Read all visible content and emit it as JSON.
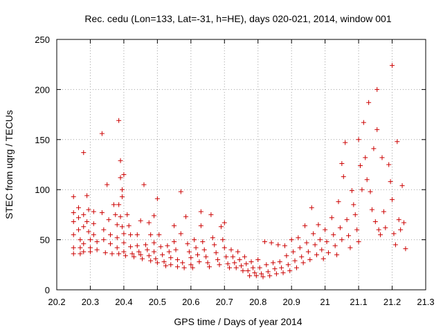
{
  "chart_data": {
    "type": "scatter",
    "title": "Rec. cedu (Lon=133, Lat=-31, h=HE), days 020-021, 2014, window 001",
    "xlabel": "GPS time / Days of year 2014",
    "ylabel": "STEC from uqrg / TECUs",
    "xlim": [
      20.2,
      21.3
    ],
    "ylim": [
      0,
      250
    ],
    "xticks": [
      20.2,
      20.3,
      20.4,
      20.5,
      20.6,
      20.7,
      20.8,
      20.9,
      21.0,
      21.1,
      21.2,
      21.3
    ],
    "xtick_labels": [
      "20.2",
      "20.3",
      "20.4",
      "20.5",
      "20.6",
      "20.7",
      "20.8",
      "20.9",
      "21",
      "21.1",
      "21.2",
      "21.3"
    ],
    "yticks": [
      0,
      50,
      100,
      150,
      200,
      250
    ],
    "ytick_labels": [
      "0",
      "50",
      "100",
      "150",
      "200",
      "250"
    ],
    "grid": true,
    "marker": "+",
    "color": "#cc0000",
    "series": [
      {
        "name": "STEC",
        "points": [
          [
            20.25,
            93
          ],
          [
            20.25,
            77
          ],
          [
            20.25,
            68
          ],
          [
            20.25,
            55
          ],
          [
            20.25,
            42
          ],
          [
            20.25,
            36
          ],
          [
            20.265,
            82
          ],
          [
            20.265,
            72
          ],
          [
            20.265,
            60
          ],
          [
            20.27,
            50
          ],
          [
            20.27,
            42
          ],
          [
            20.27,
            36
          ],
          [
            20.28,
            137
          ],
          [
            20.28,
            75
          ],
          [
            20.28,
            63
          ],
          [
            20.28,
            46
          ],
          [
            20.28,
            38
          ],
          [
            20.29,
            94
          ],
          [
            20.29,
            68
          ],
          [
            20.295,
            80
          ],
          [
            20.295,
            58
          ],
          [
            20.3,
            50
          ],
          [
            20.3,
            42
          ],
          [
            20.3,
            38
          ],
          [
            20.31,
            78
          ],
          [
            20.31,
            66
          ],
          [
            20.31,
            55
          ],
          [
            20.32,
            48
          ],
          [
            20.32,
            40
          ],
          [
            20.335,
            156
          ],
          [
            20.335,
            77
          ],
          [
            20.34,
            60
          ],
          [
            20.34,
            50
          ],
          [
            20.345,
            37
          ],
          [
            20.35,
            105
          ],
          [
            20.355,
            70
          ],
          [
            20.36,
            55
          ],
          [
            20.36,
            46
          ],
          [
            20.365,
            36
          ],
          [
            20.37,
            85
          ],
          [
            20.375,
            75
          ],
          [
            20.38,
            65
          ],
          [
            20.38,
            52
          ],
          [
            20.38,
            42
          ],
          [
            20.385,
            36
          ],
          [
            20.385,
            169
          ],
          [
            20.39,
            129
          ],
          [
            20.39,
            112
          ],
          [
            20.395,
            100
          ],
          [
            20.395,
            93
          ],
          [
            20.385,
            85
          ],
          [
            20.39,
            73
          ],
          [
            20.395,
            63
          ],
          [
            20.4,
            115
          ],
          [
            20.4,
            56
          ],
          [
            20.4,
            47
          ],
          [
            20.4,
            38
          ],
          [
            20.405,
            34
          ],
          [
            20.41,
            75
          ],
          [
            20.415,
            64
          ],
          [
            20.42,
            55
          ],
          [
            20.42,
            43
          ],
          [
            20.425,
            36
          ],
          [
            20.43,
            33
          ],
          [
            20.44,
            55
          ],
          [
            20.44,
            44
          ],
          [
            20.445,
            38
          ],
          [
            20.45,
            69
          ],
          [
            20.45,
            35
          ],
          [
            20.455,
            31
          ],
          [
            20.46,
            105
          ],
          [
            20.465,
            45
          ],
          [
            20.47,
            40
          ],
          [
            20.475,
            67
          ],
          [
            20.475,
            34
          ],
          [
            20.48,
            55
          ],
          [
            20.48,
            29
          ],
          [
            20.49,
            74
          ],
          [
            20.49,
            47
          ],
          [
            20.49,
            38
          ],
          [
            20.495,
            31
          ],
          [
            20.5,
            91
          ],
          [
            20.5,
            27
          ],
          [
            20.505,
            55
          ],
          [
            20.51,
            43
          ],
          [
            20.515,
            35
          ],
          [
            20.52,
            28
          ],
          [
            20.525,
            24
          ],
          [
            20.53,
            44
          ],
          [
            20.535,
            38
          ],
          [
            20.54,
            32
          ],
          [
            20.54,
            25
          ],
          [
            20.55,
            64
          ],
          [
            20.55,
            48
          ],
          [
            20.555,
            40
          ],
          [
            20.56,
            30
          ],
          [
            20.56,
            23
          ],
          [
            20.57,
            98
          ],
          [
            20.57,
            56
          ],
          [
            20.575,
            27
          ],
          [
            20.58,
            22
          ],
          [
            20.585,
            73
          ],
          [
            20.59,
            46
          ],
          [
            20.595,
            38
          ],
          [
            20.6,
            32
          ],
          [
            20.6,
            25
          ],
          [
            20.605,
            22
          ],
          [
            20.61,
            50
          ],
          [
            20.615,
            42
          ],
          [
            20.62,
            35
          ],
          [
            20.625,
            28
          ],
          [
            20.63,
            78
          ],
          [
            20.63,
            64
          ],
          [
            20.635,
            48
          ],
          [
            20.64,
            40
          ],
          [
            20.645,
            33
          ],
          [
            20.65,
            27
          ],
          [
            20.655,
            23
          ],
          [
            20.66,
            75
          ],
          [
            20.665,
            52
          ],
          [
            20.67,
            45
          ],
          [
            20.675,
            37
          ],
          [
            20.68,
            30
          ],
          [
            20.685,
            25
          ],
          [
            20.69,
            63
          ],
          [
            20.695,
            50
          ],
          [
            20.7,
            67
          ],
          [
            20.7,
            42
          ],
          [
            20.705,
            33
          ],
          [
            20.71,
            26
          ],
          [
            20.715,
            22
          ],
          [
            20.72,
            40
          ],
          [
            20.725,
            33
          ],
          [
            20.73,
            27
          ],
          [
            20.735,
            22
          ],
          [
            20.74,
            38
          ],
          [
            20.745,
            30
          ],
          [
            20.75,
            24
          ],
          [
            20.755,
            19
          ],
          [
            20.76,
            33
          ],
          [
            20.765,
            26
          ],
          [
            20.77,
            19
          ],
          [
            20.775,
            14
          ],
          [
            20.78,
            28
          ],
          [
            20.785,
            22
          ],
          [
            20.79,
            17
          ],
          [
            20.795,
            14
          ],
          [
            20.8,
            30
          ],
          [
            20.805,
            22
          ],
          [
            20.81,
            16
          ],
          [
            20.815,
            13
          ],
          [
            20.82,
            48
          ],
          [
            20.825,
            25
          ],
          [
            20.83,
            18
          ],
          [
            20.835,
            14
          ],
          [
            20.84,
            47
          ],
          [
            20.845,
            27
          ],
          [
            20.85,
            21
          ],
          [
            20.855,
            16
          ],
          [
            20.86,
            45
          ],
          [
            20.865,
            28
          ],
          [
            20.87,
            22
          ],
          [
            20.875,
            17
          ],
          [
            20.88,
            44
          ],
          [
            20.885,
            34
          ],
          [
            20.89,
            25
          ],
          [
            20.895,
            19
          ],
          [
            20.9,
            50
          ],
          [
            20.905,
            38
          ],
          [
            20.91,
            29
          ],
          [
            20.915,
            22
          ],
          [
            20.92,
            52
          ],
          [
            20.925,
            42
          ],
          [
            20.93,
            33
          ],
          [
            20.935,
            27
          ],
          [
            20.94,
            64
          ],
          [
            20.945,
            47
          ],
          [
            20.95,
            38
          ],
          [
            20.955,
            30
          ],
          [
            20.96,
            82
          ],
          [
            20.965,
            56
          ],
          [
            20.97,
            45
          ],
          [
            20.975,
            35
          ],
          [
            20.98,
            65
          ],
          [
            20.985,
            50
          ],
          [
            20.99,
            40
          ],
          [
            20.995,
            31
          ],
          [
            21.0,
            60
          ],
          [
            21.005,
            48
          ],
          [
            21.01,
            37
          ],
          [
            21.02,
            72
          ],
          [
            21.025,
            55
          ],
          [
            21.03,
            44
          ],
          [
            21.035,
            35
          ],
          [
            21.04,
            88
          ],
          [
            21.045,
            62
          ],
          [
            21.05,
            126
          ],
          [
            21.05,
            50
          ],
          [
            21.055,
            113
          ],
          [
            21.06,
            147
          ],
          [
            21.065,
            70
          ],
          [
            21.07,
            54
          ],
          [
            21.075,
            42
          ],
          [
            21.08,
            99
          ],
          [
            21.085,
            85
          ],
          [
            21.09,
            75
          ],
          [
            21.095,
            60
          ],
          [
            21.1,
            150
          ],
          [
            21.1,
            48
          ],
          [
            21.105,
            124
          ],
          [
            21.11,
            100
          ],
          [
            21.115,
            167
          ],
          [
            21.12,
            132
          ],
          [
            21.125,
            110
          ],
          [
            21.13,
            187
          ],
          [
            21.135,
            98
          ],
          [
            21.14,
            80
          ],
          [
            21.145,
            141
          ],
          [
            21.15,
            68
          ],
          [
            21.155,
            200
          ],
          [
            21.155,
            160
          ],
          [
            21.16,
            60
          ],
          [
            21.165,
            55
          ],
          [
            21.17,
            132
          ],
          [
            21.175,
            78
          ],
          [
            21.18,
            62
          ],
          [
            21.19,
            125
          ],
          [
            21.195,
            108
          ],
          [
            21.2,
            224
          ],
          [
            21.2,
            90
          ],
          [
            21.205,
            56
          ],
          [
            21.21,
            45
          ],
          [
            21.215,
            148
          ],
          [
            21.22,
            70
          ],
          [
            21.225,
            60
          ],
          [
            21.23,
            104
          ],
          [
            21.235,
            67
          ],
          [
            21.24,
            41
          ]
        ]
      }
    ]
  }
}
